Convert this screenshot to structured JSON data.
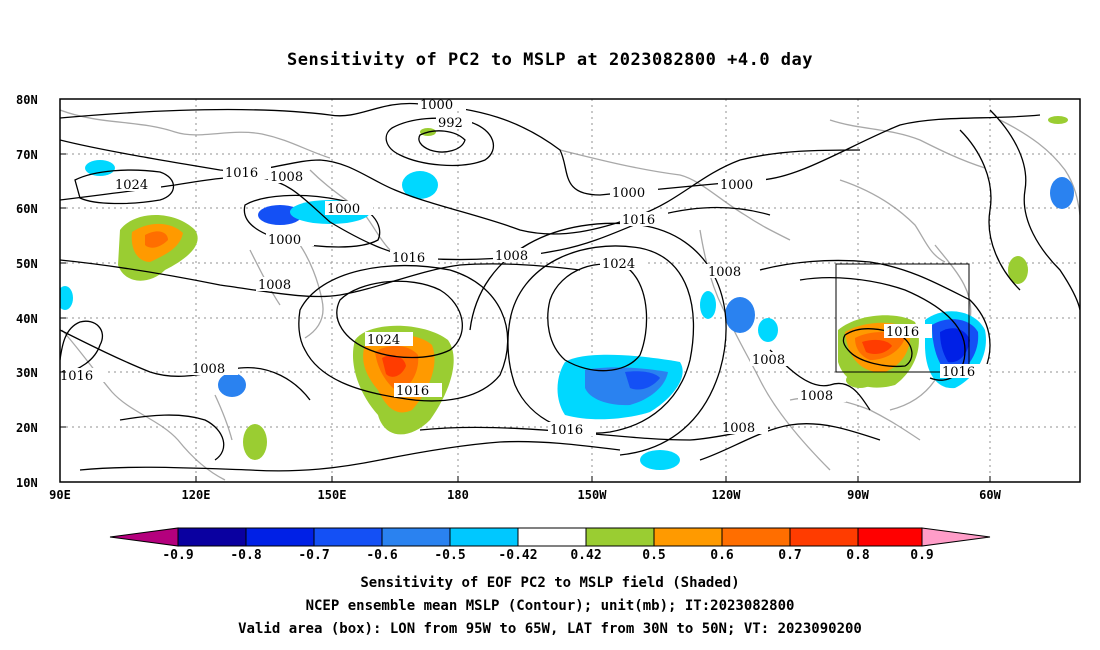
{
  "title": "Sensitivity of PC2 to MSLP at 2023082800 +4.0 day",
  "lat_labels": [
    "80N",
    "70N",
    "60N",
    "50N",
    "40N",
    "30N",
    "20N",
    "10N"
  ],
  "lon_labels": [
    "90E",
    "120E",
    "150E",
    "180",
    "150W",
    "120W",
    "90W",
    "60W"
  ],
  "contour_labels": [
    "1000",
    "992",
    "1000",
    "1024",
    "1016",
    "1008",
    "1000",
    "1000",
    "1000",
    "1016",
    "1008",
    "1016",
    "1024",
    "1008",
    "1024",
    "1016",
    "1016",
    "1008",
    "1008",
    "1016",
    "1016",
    "1008",
    "1008",
    "1008",
    "1016"
  ],
  "colorbar": {
    "labels": [
      "-0.9",
      "-0.8",
      "-0.7",
      "-0.6",
      "-0.5",
      "-0.42",
      "0.42",
      "0.5",
      "0.6",
      "0.7",
      "0.8",
      "0.9"
    ],
    "colors": [
      "#b4007d",
      "#0a00a0",
      "#0020e6",
      "#1450f5",
      "#2a82f0",
      "#1eb4f0",
      "#00d8ff",
      "#ffffff",
      "#9acd32",
      "#ff9a00",
      "#ff6e00",
      "#ff3c00",
      "#ff0000",
      "#ff9dc8"
    ]
  },
  "captions": [
    "Sensitivity of EOF PC2 to MSLP field (Shaded)",
    "NCEP ensemble mean MSLP (Contour); unit(mb); IT:2023082800",
    "Valid area (box): LON from 95W to 65W, LAT from 30N to 50N; VT: 2023090200"
  ]
}
